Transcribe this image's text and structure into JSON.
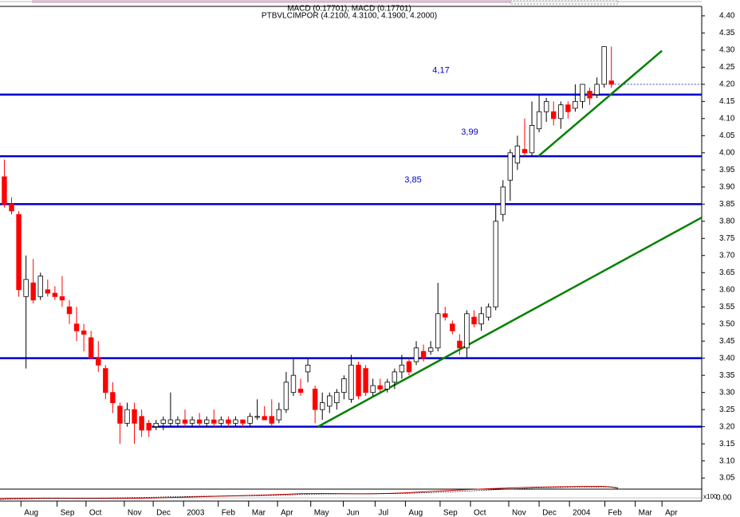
{
  "chart_data": {
    "type": "candlestick",
    "subtitle": "MACD (0.17701), MACD (0.17701)",
    "title": "PTBVLCIMPOR (4.2100, 4.3100, 4.1900, 4.2000)",
    "up_color": "#ffffff",
    "down_color": "#ff0000",
    "ohlc": [
      [
        3.93,
        3.98,
        3.84,
        3.85
      ],
      [
        3.85,
        3.87,
        3.82,
        3.83
      ],
      [
        3.82,
        3.83,
        3.58,
        3.6
      ],
      [
        3.58,
        3.7,
        3.37,
        3.63
      ],
      [
        3.62,
        3.69,
        3.56,
        3.57
      ],
      [
        3.58,
        3.65,
        3.57,
        3.64
      ],
      [
        3.6,
        3.63,
        3.58,
        3.59
      ],
      [
        3.59,
        3.61,
        3.57,
        3.58
      ],
      [
        3.58,
        3.64,
        3.55,
        3.57
      ],
      [
        3.55,
        3.57,
        3.5,
        3.53
      ],
      [
        3.5,
        3.55,
        3.45,
        3.48
      ],
      [
        3.48,
        3.5,
        3.42,
        3.47
      ],
      [
        3.46,
        3.48,
        3.4,
        3.4
      ],
      [
        3.4,
        3.45,
        3.36,
        3.38
      ],
      [
        3.37,
        3.38,
        3.28,
        3.3
      ],
      [
        3.3,
        3.33,
        3.24,
        3.27
      ],
      [
        3.26,
        3.27,
        3.15,
        3.21
      ],
      [
        3.21,
        3.27,
        3.2,
        3.25
      ],
      [
        3.25,
        3.27,
        3.15,
        3.21
      ],
      [
        3.23,
        3.25,
        3.17,
        3.19
      ],
      [
        3.21,
        3.22,
        3.17,
        3.19
      ],
      [
        3.2,
        3.22,
        3.19,
        3.21
      ],
      [
        3.21,
        3.23,
        3.19,
        3.22
      ],
      [
        3.21,
        3.3,
        3.2,
        3.22
      ],
      [
        3.21,
        3.23,
        3.2,
        3.22
      ],
      [
        3.22,
        3.25,
        3.2,
        3.21
      ],
      [
        3.21,
        3.23,
        3.2,
        3.22
      ],
      [
        3.22,
        3.24,
        3.2,
        3.21
      ],
      [
        3.21,
        3.23,
        3.2,
        3.22
      ],
      [
        3.22,
        3.25,
        3.2,
        3.21
      ],
      [
        3.21,
        3.23,
        3.2,
        3.22
      ],
      [
        3.22,
        3.23,
        3.2,
        3.21
      ],
      [
        3.21,
        3.23,
        3.2,
        3.22
      ],
      [
        3.22,
        3.22,
        3.2,
        3.21
      ],
      [
        3.21,
        3.24,
        3.2,
        3.23
      ],
      [
        3.23,
        3.28,
        3.22,
        3.23
      ],
      [
        3.23,
        3.26,
        3.22,
        3.22
      ],
      [
        3.23,
        3.28,
        3.2,
        3.21
      ],
      [
        3.22,
        3.27,
        3.21,
        3.25
      ],
      [
        3.25,
        3.36,
        3.24,
        3.33
      ],
      [
        3.3,
        3.4,
        3.29,
        3.35
      ],
      [
        3.31,
        3.34,
        3.29,
        3.3
      ],
      [
        3.36,
        3.4,
        3.33,
        3.38
      ],
      [
        3.31,
        3.32,
        3.21,
        3.25
      ],
      [
        3.25,
        3.3,
        3.22,
        3.27
      ],
      [
        3.26,
        3.3,
        3.24,
        3.29
      ],
      [
        3.27,
        3.31,
        3.25,
        3.3
      ],
      [
        3.3,
        3.35,
        3.28,
        3.34
      ],
      [
        3.28,
        3.41,
        3.27,
        3.38
      ],
      [
        3.38,
        3.39,
        3.28,
        3.29
      ],
      [
        3.37,
        3.38,
        3.29,
        3.3
      ],
      [
        3.3,
        3.34,
        3.29,
        3.32
      ],
      [
        3.32,
        3.34,
        3.3,
        3.31
      ],
      [
        3.31,
        3.34,
        3.3,
        3.33
      ],
      [
        3.33,
        3.37,
        3.31,
        3.36
      ],
      [
        3.36,
        3.41,
        3.34,
        3.38
      ],
      [
        3.39,
        3.4,
        3.35,
        3.36
      ],
      [
        3.39,
        3.45,
        3.38,
        3.43
      ],
      [
        3.42,
        3.44,
        3.39,
        3.4
      ],
      [
        3.42,
        3.45,
        3.41,
        3.43
      ],
      [
        3.43,
        3.62,
        3.42,
        3.53
      ],
      [
        3.53,
        3.55,
        3.51,
        3.52
      ],
      [
        3.5,
        3.51,
        3.47,
        3.48
      ],
      [
        3.45,
        3.47,
        3.41,
        3.43
      ],
      [
        3.43,
        3.54,
        3.4,
        3.53
      ],
      [
        3.52,
        3.54,
        3.49,
        3.5
      ],
      [
        3.5,
        3.55,
        3.48,
        3.53
      ],
      [
        3.52,
        3.56,
        3.51,
        3.55
      ],
      [
        3.55,
        3.85,
        3.54,
        3.8
      ],
      [
        3.82,
        3.92,
        3.8,
        3.9
      ],
      [
        3.92,
        4.01,
        3.86,
        4.0
      ],
      [
        3.97,
        4.05,
        3.95,
        4.02
      ],
      [
        4.01,
        4.1,
        3.99,
        4.0
      ],
      [
        4.0,
        4.15,
        3.99,
        4.08
      ],
      [
        4.07,
        4.17,
        4.06,
        4.12
      ],
      [
        4.12,
        4.16,
        4.09,
        4.15
      ],
      [
        4.12,
        4.15,
        4.08,
        4.1
      ],
      [
        4.1,
        4.15,
        4.07,
        4.14
      ],
      [
        4.14,
        4.15,
        4.1,
        4.12
      ],
      [
        4.13,
        4.2,
        4.12,
        4.15
      ],
      [
        4.15,
        4.2,
        4.13,
        4.2
      ],
      [
        4.18,
        4.19,
        4.14,
        4.16
      ],
      [
        4.17,
        4.22,
        4.16,
        4.2
      ],
      [
        4.2,
        4.31,
        4.19,
        4.31
      ],
      [
        4.21,
        4.31,
        4.19,
        4.2
      ]
    ],
    "xlim": [
      -0.6,
      96.5
    ],
    "xticks": [
      {
        "value": 2.3,
        "label": "Aug"
      },
      {
        "value": 7.3,
        "label": "Sep"
      },
      {
        "value": 11.3,
        "label": "Oct"
      },
      {
        "value": 16.6,
        "label": "Nov"
      },
      {
        "value": 20.6,
        "label": "Dec"
      },
      {
        "value": 24.8,
        "label": "2003"
      },
      {
        "value": 29.6,
        "label": "Feb"
      },
      {
        "value": 33.8,
        "label": "Mar"
      },
      {
        "value": 37.8,
        "label": "Apr"
      },
      {
        "value": 42.4,
        "label": "May"
      },
      {
        "value": 46.9,
        "label": "Jun"
      },
      {
        "value": 51.3,
        "label": "Jul"
      },
      {
        "value": 55.5,
        "label": "Aug"
      },
      {
        "value": 60.3,
        "label": "Sep"
      },
      {
        "value": 64.5,
        "label": "Oct"
      },
      {
        "value": 69.8,
        "label": "Nov"
      },
      {
        "value": 74.0,
        "label": "Dec"
      },
      {
        "value": 78.2,
        "label": "2004"
      },
      {
        "value": 83.1,
        "label": "Feb"
      },
      {
        "value": 87.3,
        "label": "Mar"
      },
      {
        "value": 91.0,
        "label": "Apr"
      }
    ],
    "ylim": [
      3.02,
      4.43
    ],
    "yticks": [
      3.05,
      {
        "value": 3.1,
        "label": "3.10"
      },
      3.15,
      {
        "value": 3.2,
        "label": "3.20"
      },
      3.25,
      {
        "value": 3.3,
        "label": "3.30"
      },
      3.35,
      {
        "value": 3.4,
        "label": "3.40"
      },
      3.45,
      {
        "value": 3.5,
        "label": "3.50"
      },
      3.55,
      {
        "value": 3.6,
        "label": "3.60"
      },
      3.65,
      {
        "value": 3.7,
        "label": "3.70"
      },
      3.75,
      {
        "value": 3.8,
        "label": "3.80"
      },
      3.85,
      {
        "value": 3.9,
        "label": "3.90"
      },
      3.95,
      {
        "value": 4,
        "label": "4.00"
      },
      4.05,
      {
        "value": 4.1,
        "label": "4.10"
      },
      4.15,
      {
        "value": 4.2,
        "label": "4.20"
      },
      4.25,
      {
        "value": 4.3,
        "label": "4.30"
      },
      4.35,
      {
        "value": 4.4,
        "label": "4.40"
      }
    ],
    "hline_color": "#0000cc",
    "hlines": [
      {
        "value": 4.17,
        "label": "4,17"
      },
      {
        "value": 3.99,
        "label": "3,99"
      },
      {
        "value": 3.85,
        "label": "3,85"
      },
      {
        "value": 3.4
      },
      {
        "value": 3.2,
        "start": 20.4
      }
    ],
    "trend_color": "#008000",
    "trendlines": [
      {
        "x": [
          43.4,
          96.5
        ],
        "y": [
          3.2,
          3.811
        ]
      },
      {
        "x": [
          73.9,
          91.0
        ],
        "y": [
          3.99,
          4.298
        ]
      }
    ],
    "lower_panel": {
      "scale_label": "x100",
      "tick_label": "0.00"
    }
  }
}
